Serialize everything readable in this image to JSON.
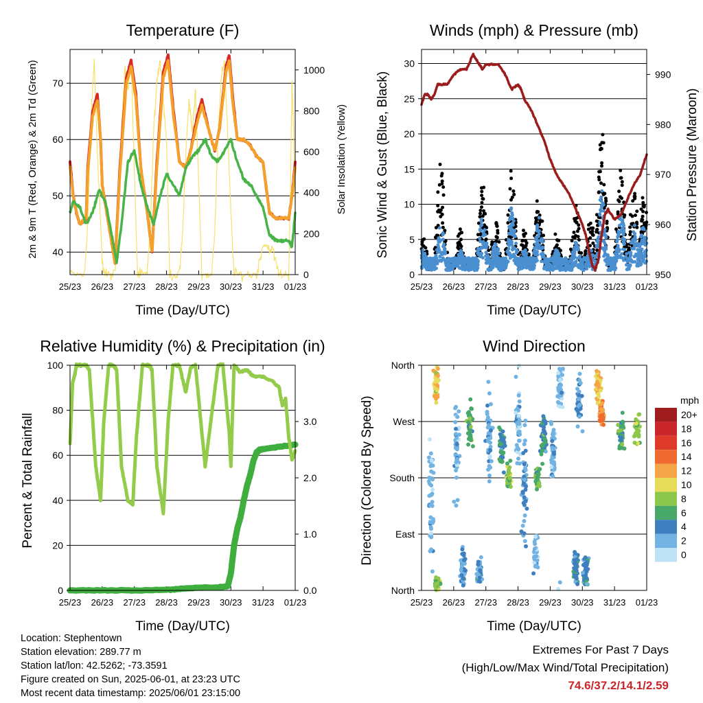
{
  "days": [
    "25/23",
    "26/23",
    "27/23",
    "28/23",
    "29/23",
    "30/23",
    "31/23",
    "01/23"
  ],
  "colors": {
    "temp2m": "#d62a26",
    "temp9m": "#f5a02a",
    "dewpoint": "#48b448",
    "solar": "#f7e06a",
    "pressure": "#9b1c1c",
    "gust": "#000000",
    "wind": "#4a8fd0",
    "rh": "#92cc4a",
    "precip": "#3fae3f"
  },
  "chart_data": [
    {
      "id": "temp",
      "type": "line",
      "title": "Temperature (F)",
      "xlabel": "Time (Day/UTC)",
      "ylabel": "2m & 9m T (Red, Orange) & 2m Td (Green)",
      "y2label": "Solar Insolation (Yellow)",
      "xlim": [
        0,
        7
      ],
      "ylim": [
        36,
        76
      ],
      "y2lim": [
        0,
        1100
      ],
      "yticks": [
        40,
        50,
        60,
        70
      ],
      "y2ticks": [
        0,
        200,
        400,
        600,
        800,
        1000
      ],
      "grid": true,
      "series": [
        {
          "key": "temp2m",
          "axis": "y",
          "x": [
            0,
            0.1,
            0.2,
            0.3,
            0.5,
            0.55,
            0.7,
            0.85,
            0.95,
            1.0,
            1.2,
            1.4,
            1.55,
            1.75,
            1.9,
            2.05,
            2.2,
            2.4,
            2.55,
            2.7,
            2.9,
            3.05,
            3.2,
            3.4,
            3.6,
            3.75,
            3.95,
            4.1,
            4.3,
            4.5,
            4.65,
            4.85,
            4.95,
            5.05,
            5.2,
            5.4,
            5.6,
            5.8,
            6.0,
            6.2,
            6.4,
            6.6,
            6.8,
            6.9,
            7.0
          ],
          "y": [
            56,
            50,
            47,
            45,
            46,
            55,
            65,
            68,
            60,
            52,
            45,
            38,
            55,
            71,
            74,
            68,
            55,
            47,
            40,
            56,
            72,
            75,
            66,
            56,
            55,
            58,
            64,
            67,
            62,
            58,
            62,
            73,
            75,
            68,
            60,
            60,
            59,
            57,
            56,
            47,
            46,
            46,
            46,
            50,
            56
          ]
        },
        {
          "key": "temp9m",
          "axis": "y",
          "x": [
            0,
            0.1,
            0.2,
            0.3,
            0.5,
            0.55,
            0.7,
            0.85,
            0.95,
            1.0,
            1.2,
            1.4,
            1.55,
            1.75,
            1.9,
            2.05,
            2.2,
            2.4,
            2.55,
            2.7,
            2.9,
            3.05,
            3.2,
            3.4,
            3.6,
            3.75,
            3.95,
            4.1,
            4.3,
            4.5,
            4.65,
            4.85,
            4.95,
            5.05,
            5.2,
            5.4,
            5.6,
            5.8,
            6.0,
            6.2,
            6.4,
            6.6,
            6.8,
            6.9,
            7.0
          ],
          "y": [
            55,
            50,
            47,
            45,
            46,
            54,
            64,
            67,
            60,
            52,
            45,
            38,
            54,
            70,
            73,
            67,
            55,
            47,
            40,
            55,
            71,
            74,
            65,
            56,
            55,
            58,
            63,
            66,
            62,
            58,
            62,
            72,
            74,
            67,
            60,
            60,
            59,
            57,
            56,
            47,
            46,
            46,
            46,
            50,
            55
          ]
        },
        {
          "key": "dewpoint",
          "axis": "y",
          "x": [
            0,
            0.1,
            0.3,
            0.5,
            0.7,
            0.9,
            1.1,
            1.3,
            1.45,
            1.6,
            1.8,
            2.0,
            2.2,
            2.4,
            2.6,
            2.8,
            3.0,
            3.2,
            3.4,
            3.6,
            3.8,
            4.0,
            4.2,
            4.4,
            4.6,
            4.8,
            5.0,
            5.2,
            5.4,
            5.6,
            5.8,
            6.0,
            6.2,
            6.4,
            6.6,
            6.8,
            6.9,
            7.0
          ],
          "y": [
            47,
            49,
            48,
            45,
            47,
            51,
            49,
            43,
            38,
            45,
            56,
            58,
            52,
            48,
            45,
            50,
            54,
            52,
            50,
            55,
            57,
            58,
            60,
            57,
            56,
            58,
            60,
            56,
            53,
            52,
            50,
            48,
            43,
            42,
            42,
            42,
            41,
            47
          ]
        },
        {
          "key": "solar",
          "axis": "y2",
          "x": [
            0,
            0.45,
            0.55,
            0.65,
            0.75,
            0.85,
            0.95,
            1.0,
            1.1,
            1.4,
            1.5,
            1.6,
            1.7,
            1.8,
            1.9,
            2.0,
            2.1,
            2.4,
            2.5,
            2.6,
            2.7,
            2.8,
            2.9,
            3.0,
            3.1,
            3.4,
            3.5,
            3.6,
            3.7,
            3.8,
            3.9,
            4.0,
            4.1,
            4.4,
            4.5,
            4.6,
            4.7,
            4.8,
            4.9,
            5.0,
            5.1,
            5.4,
            5.8,
            6.0,
            6.3,
            6.5,
            6.8,
            6.85,
            6.9,
            6.95,
            7.0
          ],
          "y": [
            0,
            0,
            250,
            750,
            1050,
            600,
            250,
            50,
            0,
            0,
            300,
            700,
            1000,
            900,
            1050,
            500,
            0,
            0,
            250,
            700,
            950,
            1050,
            850,
            650,
            0,
            0,
            200,
            600,
            850,
            700,
            900,
            450,
            0,
            0,
            200,
            700,
            950,
            1050,
            700,
            300,
            0,
            0,
            0,
            150,
            120,
            0,
            0,
            400,
            950,
            700,
            300
          ]
        }
      ]
    },
    {
      "id": "wind",
      "type": "scatter",
      "title": "Winds (mph) & Pressure (mb)",
      "xlabel": "Time (Day/UTC)",
      "ylabel": "Sonic Wind & Gust (Blue, Black)",
      "y2label": "Station Pressure (Maroon)",
      "xlim": [
        0,
        7
      ],
      "ylim": [
        0,
        32
      ],
      "y2lim": [
        950,
        995
      ],
      "yticks": [
        0,
        5,
        10,
        15,
        20,
        25,
        30
      ],
      "y2ticks": [
        950,
        960,
        970,
        980,
        990
      ],
      "grid": true,
      "series": [
        {
          "key": "pressure",
          "axis": "y2",
          "type": "line",
          "x": [
            0,
            0.1,
            0.2,
            0.3,
            0.4,
            0.5,
            0.6,
            0.8,
            1.0,
            1.2,
            1.4,
            1.6,
            1.7,
            1.8,
            1.9,
            2.0,
            2.2,
            2.4,
            2.6,
            2.8,
            3.0,
            3.1,
            3.2,
            3.4,
            3.6,
            3.8,
            4.0,
            4.2,
            4.4,
            4.6,
            4.8,
            5.0,
            5.1,
            5.2,
            5.3,
            5.4,
            5.5,
            5.6,
            5.7,
            5.8,
            6.0,
            6.2,
            6.4,
            6.6,
            6.8,
            7.0
          ],
          "y": [
            984,
            986,
            986,
            985,
            986,
            988,
            988,
            988,
            990,
            991,
            991,
            994,
            993,
            992,
            991,
            992,
            992,
            992,
            990,
            987,
            988,
            987,
            985,
            983,
            980,
            977,
            973,
            970,
            968,
            966,
            963,
            960,
            958,
            955,
            952,
            951,
            953,
            958,
            962,
            963,
            961,
            962,
            965,
            968,
            970,
            974
          ]
        },
        {
          "key": "wind",
          "axis": "y",
          "type": "scatter",
          "peaks": [
            [
              0.05,
              3
            ],
            [
              0.6,
              6
            ],
            [
              1.2,
              3
            ],
            [
              1.9,
              7
            ],
            [
              2.3,
              4
            ],
            [
              2.8,
              8
            ],
            [
              3.2,
              3
            ],
            [
              3.65,
              7
            ],
            [
              4.2,
              3
            ],
            [
              4.8,
              4
            ],
            [
              5.25,
              3
            ],
            [
              5.6,
              10
            ],
            [
              6.2,
              8
            ],
            [
              6.6,
              6
            ],
            [
              6.9,
              6
            ]
          ]
        },
        {
          "key": "gust",
          "axis": "y",
          "type": "scatter",
          "peaks": [
            [
              0.05,
              5
            ],
            [
              0.6,
              15
            ],
            [
              1.2,
              6
            ],
            [
              1.9,
              12
            ],
            [
              2.3,
              7
            ],
            [
              2.8,
              14
            ],
            [
              3.2,
              6
            ],
            [
              3.65,
              11
            ],
            [
              4.2,
              6
            ],
            [
              4.8,
              9
            ],
            [
              5.25,
              8
            ],
            [
              5.6,
              20
            ],
            [
              6.2,
              14
            ],
            [
              6.6,
              12
            ],
            [
              6.9,
              11
            ]
          ]
        }
      ]
    },
    {
      "id": "rh",
      "type": "line",
      "title": "Relative Humidity (%) & Precipitation (in)",
      "xlabel": "Time (Day/UTC)",
      "ylabel": "Percent & Total Rainfall",
      "xlim": [
        0,
        7
      ],
      "ylim": [
        0,
        100
      ],
      "y2lim": [
        0,
        4
      ],
      "yticks": [
        0,
        20,
        40,
        60,
        80,
        100
      ],
      "y2ticks": [
        0.0,
        1.0,
        2.0,
        3.0
      ],
      "y2ticklabels": [
        "0.0",
        "1.0",
        "2.0",
        "3.0"
      ],
      "grid": true,
      "series": [
        {
          "key": "rh",
          "axis": "y",
          "x": [
            0,
            0.08,
            0.15,
            0.2,
            0.3,
            0.5,
            0.6,
            0.8,
            0.95,
            1.05,
            1.2,
            1.35,
            1.45,
            1.6,
            1.8,
            1.95,
            2.05,
            2.25,
            2.45,
            2.55,
            2.7,
            2.9,
            3.05,
            3.2,
            3.4,
            3.6,
            3.75,
            3.9,
            4.0,
            4.2,
            4.4,
            4.6,
            4.75,
            4.95,
            5.0,
            5.1,
            5.3,
            5.5,
            5.7,
            6.0,
            6.3,
            6.5,
            6.6,
            6.7,
            6.8,
            6.9,
            7.0
          ],
          "y": [
            65,
            92,
            96,
            100,
            100,
            100,
            98,
            55,
            40,
            75,
            100,
            100,
            98,
            55,
            40,
            38,
            65,
            100,
            100,
            98,
            55,
            34,
            75,
            100,
            100,
            88,
            99,
            100,
            85,
            55,
            78,
            100,
            100,
            70,
            55,
            100,
            97,
            98,
            95,
            95,
            93,
            90,
            82,
            85,
            68,
            58,
            62
          ]
        },
        {
          "key": "precip",
          "axis": "y2",
          "x": [
            0,
            1,
            2,
            3,
            3.5,
            4,
            4.5,
            4.9,
            5.0,
            5.1,
            5.2,
            5.3,
            5.4,
            5.5,
            5.6,
            5.7,
            5.8,
            5.9,
            6.0,
            6.5,
            7.0
          ],
          "y": [
            0,
            0,
            0,
            0.01,
            0.03,
            0.05,
            0.05,
            0.07,
            0.3,
            0.8,
            1.1,
            1.3,
            1.6,
            1.85,
            2.05,
            2.3,
            2.45,
            2.5,
            2.51,
            2.55,
            2.59
          ]
        }
      ]
    },
    {
      "id": "dir",
      "type": "scatter",
      "title": "Wind Direction",
      "xlabel": "Time (Day/UTC)",
      "ylabel": "Direction (Colored By Speed)",
      "xlim": [
        0,
        7
      ],
      "ylim": [
        0,
        360
      ],
      "ytick_values": [
        0,
        90,
        180,
        270,
        360
      ],
      "ytick_labels": [
        "North",
        "East",
        "South",
        "West",
        "North"
      ],
      "grid": true,
      "legend": {
        "title": "mph",
        "labels": [
          "20+",
          "18",
          "16",
          "14",
          "12",
          "10",
          "8",
          "6",
          "4",
          "2",
          "0"
        ],
        "colors": [
          "#a01d1d",
          "#c8262a",
          "#de3a2a",
          "#ef6a2e",
          "#f5a447",
          "#e6dc5a",
          "#8cc64c",
          "#48a86a",
          "#3f7fc0",
          "#72b3e2",
          "#bfe3f6"
        ]
      },
      "clusters": [
        {
          "x": 0.45,
          "dir": 330,
          "spread": 40,
          "speed": 11
        },
        {
          "x": 0.5,
          "dir": 10,
          "spread": 15,
          "speed": 8
        },
        {
          "x": 0.3,
          "dir": 150,
          "spread": 160,
          "speed": 2
        },
        {
          "x": 1.1,
          "dir": 230,
          "spread": 120,
          "speed": 2
        },
        {
          "x": 1.5,
          "dir": 260,
          "spread": 60,
          "speed": 6
        },
        {
          "x": 1.3,
          "dir": 40,
          "spread": 40,
          "speed": 3
        },
        {
          "x": 1.8,
          "dir": 30,
          "spread": 30,
          "speed": 3
        },
        {
          "x": 2.1,
          "dir": 230,
          "spread": 120,
          "speed": 2
        },
        {
          "x": 2.7,
          "dir": 180,
          "spread": 30,
          "speed": 8
        },
        {
          "x": 2.5,
          "dir": 230,
          "spread": 50,
          "speed": 5
        },
        {
          "x": 3.0,
          "dir": 270,
          "spread": 100,
          "speed": 2
        },
        {
          "x": 3.2,
          "dir": 160,
          "spread": 140,
          "speed": 3
        },
        {
          "x": 3.6,
          "dir": 180,
          "spread": 25,
          "speed": 7
        },
        {
          "x": 3.55,
          "dir": 60,
          "spread": 50,
          "speed": 2
        },
        {
          "x": 3.8,
          "dir": 240,
          "spread": 50,
          "speed": 5
        },
        {
          "x": 4.3,
          "dir": 330,
          "spread": 60,
          "speed": 2
        },
        {
          "x": 4.1,
          "dir": 220,
          "spread": 80,
          "speed": 2
        },
        {
          "x": 4.8,
          "dir": 40,
          "spread": 50,
          "speed": 4
        },
        {
          "x": 4.9,
          "dir": 300,
          "spread": 60,
          "speed": 3
        },
        {
          "x": 5.5,
          "dir": 330,
          "spread": 40,
          "speed": 11
        },
        {
          "x": 5.6,
          "dir": 280,
          "spread": 30,
          "speed": 13
        },
        {
          "x": 6.2,
          "dir": 250,
          "spread": 40,
          "speed": 6
        },
        {
          "x": 6.7,
          "dir": 260,
          "spread": 40,
          "speed": 8
        },
        {
          "x": 5.1,
          "dir": 30,
          "spread": 40,
          "speed": 4
        }
      ]
    }
  ],
  "info": {
    "location": "Location: Stephentown",
    "elevation": "Station elevation: 289.77 m",
    "latlon": "Station lat/lon: 42.5262; -73.3591",
    "created": "Figure created on Sun, 2025-06-01, at 23:23 UTC",
    "recent": "Most recent data timestamp: 2025/06/01 23:15:00"
  },
  "extremes": {
    "title": "Extremes For Past 7 Days",
    "subtitle": "(High/Low/Max Wind/Total Precipitation)",
    "values": "74.6/37.2/14.1/2.59"
  }
}
